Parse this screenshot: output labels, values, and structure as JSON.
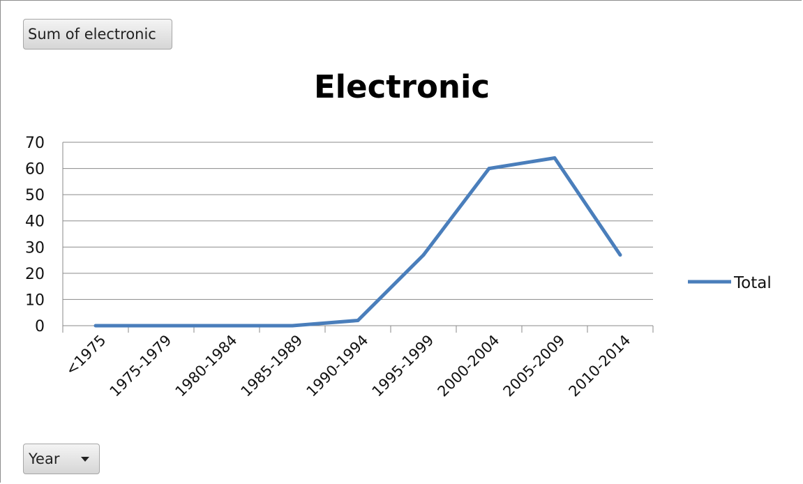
{
  "pivot": {
    "value_field_label": "Sum of electronic",
    "axis_field_label": "Year"
  },
  "chart_data": {
    "type": "line",
    "title": "Electronic",
    "xlabel": "",
    "ylabel": "",
    "categories": [
      "<1975",
      "1975-1979",
      "1980-1984",
      "1985-1989",
      "1990-1994",
      "1995-1999",
      "2000-2004",
      "2005-2009",
      "2010-2014"
    ],
    "series": [
      {
        "name": "Total",
        "values": [
          0,
          0,
          0,
          0,
          2,
          27,
          60,
          64,
          27
        ],
        "color": "#4a7ebb"
      }
    ],
    "ylim": [
      0,
      70
    ],
    "yticks": [
      0,
      10,
      20,
      30,
      40,
      50,
      60,
      70
    ],
    "grid": true,
    "legend": "right"
  }
}
